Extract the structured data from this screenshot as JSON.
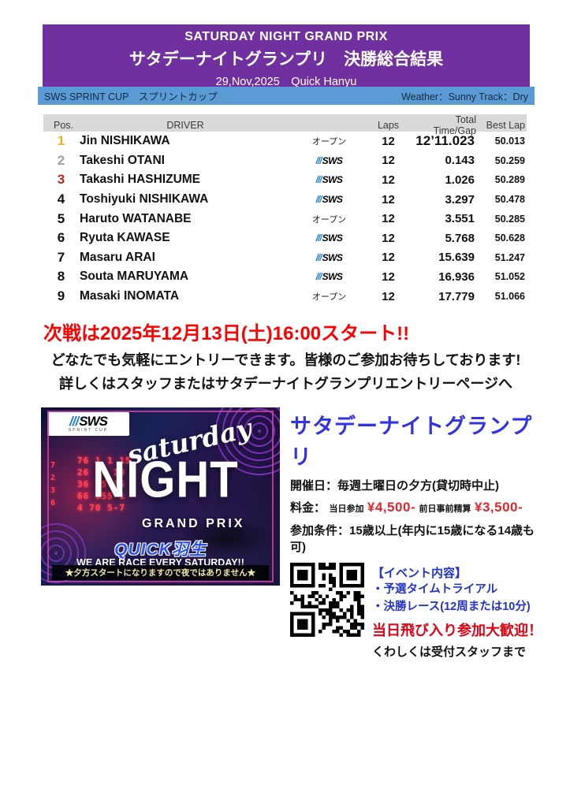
{
  "header": {
    "title_en": "SATURDAY NIGHT GRAND PRIX",
    "title_jp": "サタデーナイトグランプリ　決勝総合結果",
    "date_line": "29,Nov,2025　Quick Hanyu",
    "cup_line": "SWS SPRINT CUP　スプリントカップ",
    "conditions": "Weather：Sunny  Track：Dry"
  },
  "colors": {
    "header_purple": "#7030A0",
    "bar_blue": "#5B9BD5",
    "pos_gold": "#EDB120",
    "pos_silver": "#A0A0A0",
    "pos_red": "#C9211E",
    "announce_red": "#FF0000",
    "info_blue": "#3333E6",
    "price_red": "#E8232A"
  },
  "table": {
    "headers": {
      "pos": "Pos.",
      "driver": "DRIVER",
      "laps": "Laps",
      "gap": "Total Time/Gap",
      "best": "Best Lap"
    },
    "rows": [
      {
        "pos": "1",
        "pos_style": "gold",
        "driver": "Jin NISHIKAWA",
        "class": "オープン",
        "laps": "12",
        "gap": "12’11.023",
        "best": "50.013"
      },
      {
        "pos": "2",
        "pos_style": "silver",
        "driver": "Takeshi OTANI",
        "class": "SWS",
        "laps": "12",
        "gap": "0.143",
        "best": "50.259"
      },
      {
        "pos": "3",
        "pos_style": "red",
        "driver": "Takashi HASHIZUME",
        "class": "SWS",
        "laps": "12",
        "gap": "1.026",
        "best": "50.289"
      },
      {
        "pos": "4",
        "pos_style": "black",
        "driver": "Toshiyuki NISHIKAWA",
        "class": "SWS",
        "laps": "12",
        "gap": "3.297",
        "best": "50.478"
      },
      {
        "pos": "5",
        "pos_style": "black",
        "driver": "Haruto WATANABE",
        "class": "オープン",
        "laps": "12",
        "gap": "3.551",
        "best": "50.285"
      },
      {
        "pos": "6",
        "pos_style": "black",
        "driver": "Ryuta KAWASE",
        "class": "SWS",
        "laps": "12",
        "gap": "5.768",
        "best": "50.628"
      },
      {
        "pos": "7",
        "pos_style": "black",
        "driver": "Masaru ARAI",
        "class": "SWS",
        "laps": "12",
        "gap": "15.639",
        "best": "51.247"
      },
      {
        "pos": "8",
        "pos_style": "black",
        "driver": "Souta MARUYAMA",
        "class": "SWS",
        "laps": "12",
        "gap": "16.936",
        "best": "51.052"
      },
      {
        "pos": "9",
        "pos_style": "black",
        "driver": "Masaki INOMATA",
        "class": "オープン",
        "laps": "12",
        "gap": "17.779",
        "best": "51.066"
      }
    ]
  },
  "announcement": {
    "next_race": "次戦は2025年12月13日(土)16:00スタート!!",
    "line1": "どなたでも気軽にエントリーできます。皆様のご参加お待ちしております!",
    "line2": "詳しくはスタッフまたはサタデーナイトグランプリエントリーページへ"
  },
  "promo": {
    "logo_text": "SWS",
    "logo_sub": "SPRINT CUP",
    "script_word": "saturday",
    "night_word": "NIGHT",
    "grand_prix": "GRAND PRIX",
    "venue": "QUICK羽生",
    "tagline": "WE ARE RACE EVERY SATURDAY!!",
    "note": "★夕方スタートになりますので夜ではありません★",
    "led_rows": [
      "76 1 1 15",
      "26 19 10",
      "36 15 35",
      "66 155 1",
      "4 70 5-7"
    ],
    "led_side": [
      "7",
      "2",
      "3",
      "6"
    ]
  },
  "info": {
    "title": "サタデーナイトグランプリ",
    "schedule": "開催日：毎週土曜日の夕方(貸切時中止)",
    "fee_label": "料金：",
    "fee_day_label": "当日参加",
    "fee_day_price": "¥4,500-",
    "fee_pre_label": "前日事前精算",
    "fee_pre_price": "¥3,500-",
    "condition": "参加条件：15歳以上(年内に15歳になる14歳も可)",
    "event_header": "【イベント内容】",
    "event_items": [
      "・予選タイムトライアル",
      "・決勝レース(12周または10分)"
    ],
    "welcome": "当日飛び入り参加大歓迎！",
    "detail": "くわしくは受付スタッフまで"
  }
}
